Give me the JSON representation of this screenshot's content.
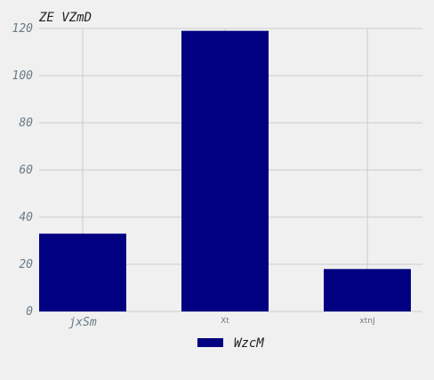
{
  "chart_data": {
    "type": "bar",
    "title": "ZE VZmD",
    "xlabel": "",
    "ylabel": "",
    "categories": [
      "jxSm",
      "Xt",
      "xtnJ"
    ],
    "series": [
      {
        "name": "WzcM",
        "values": [
          33,
          119,
          18
        ],
        "color": "#000080"
      }
    ],
    "ylim": [
      0,
      120
    ],
    "yticks": [
      0,
      20,
      40,
      60,
      80,
      100,
      120
    ],
    "grid": true,
    "legend_position": "bottom-center"
  }
}
